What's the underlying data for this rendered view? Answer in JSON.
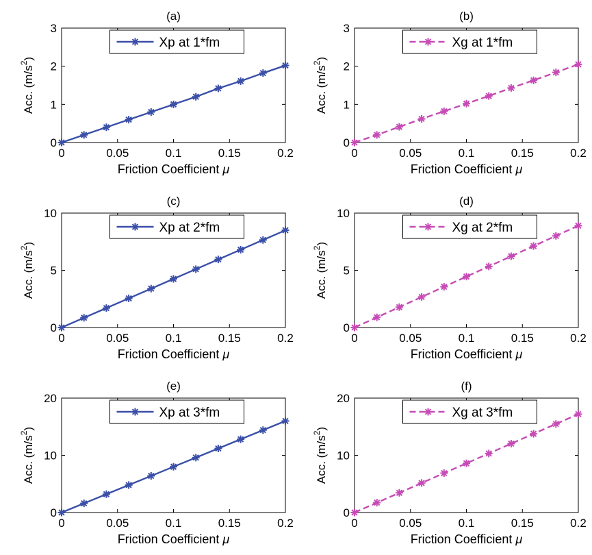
{
  "chart_data": [
    {
      "type": "line",
      "title": "(a)",
      "xlabel": "Friction Coefficient μ",
      "ylabel": "Acc. (m/s2)",
      "ylabel_parts": {
        "base": "Acc. (m/s",
        "sup": "2",
        "end": ")"
      },
      "xlim": [
        0,
        0.2
      ],
      "ylim": [
        0,
        3
      ],
      "xticks": [
        0,
        0.05,
        0.1,
        0.15,
        0.2
      ],
      "xtick_labels": [
        "0",
        "0.05",
        "0.1",
        "0.15",
        "0.2"
      ],
      "yticks": [
        0,
        1,
        2,
        3
      ],
      "ytick_labels": [
        "0",
        "1",
        "2",
        "3"
      ],
      "legend_position": "top-center",
      "series": [
        {
          "name": "Xp at 1*fm",
          "color": "#3a4fa8",
          "line_style": "solid",
          "marker": "asterisk",
          "x": [
            0,
            0.02,
            0.04,
            0.06,
            0.08,
            0.1,
            0.12,
            0.14,
            0.16,
            0.18,
            0.2
          ],
          "y": [
            0,
            0.2,
            0.4,
            0.6,
            0.8,
            1.0,
            1.2,
            1.42,
            1.61,
            1.82,
            2.02
          ]
        }
      ]
    },
    {
      "type": "line",
      "title": "(b)",
      "xlabel": "Friction Coefficient μ",
      "ylabel": "Acc. (m/s2)",
      "ylabel_parts": {
        "base": "Acc. (m/s",
        "sup": "2",
        "end": ")"
      },
      "xlim": [
        0,
        0.2
      ],
      "ylim": [
        0,
        3
      ],
      "xticks": [
        0,
        0.05,
        0.1,
        0.15,
        0.2
      ],
      "xtick_labels": [
        "0",
        "0.05",
        "0.1",
        "0.15",
        "0.2"
      ],
      "yticks": [
        0,
        1,
        2,
        3
      ],
      "ytick_labels": [
        "0",
        "1",
        "2",
        "3"
      ],
      "legend_position": "top-center",
      "series": [
        {
          "name": "Xg at 1*fm",
          "color": "#c64bb5",
          "line_style": "dashed",
          "marker": "asterisk",
          "x": [
            0,
            0.02,
            0.04,
            0.06,
            0.08,
            0.1,
            0.12,
            0.14,
            0.16,
            0.18,
            0.2
          ],
          "y": [
            0,
            0.2,
            0.41,
            0.62,
            0.82,
            1.02,
            1.22,
            1.43,
            1.63,
            1.84,
            2.05
          ]
        }
      ]
    },
    {
      "type": "line",
      "title": "(c)",
      "xlabel": "Friction Coefficient μ",
      "ylabel": "Acc. (m/s2)",
      "ylabel_parts": {
        "base": "Acc. (m/s",
        "sup": "2",
        "end": ")"
      },
      "xlim": [
        0,
        0.2
      ],
      "ylim": [
        0,
        10
      ],
      "xticks": [
        0,
        0.05,
        0.1,
        0.15,
        0.2
      ],
      "xtick_labels": [
        "0",
        "0.05",
        "0.1",
        "0.15",
        "0.2"
      ],
      "yticks": [
        0,
        5,
        10
      ],
      "ytick_labels": [
        "0",
        "5",
        "10"
      ],
      "legend_position": "top-center",
      "series": [
        {
          "name": "Xp at 2*fm",
          "color": "#3a4fa8",
          "line_style": "solid",
          "marker": "asterisk",
          "x": [
            0,
            0.02,
            0.04,
            0.06,
            0.08,
            0.1,
            0.12,
            0.14,
            0.16,
            0.18,
            0.2
          ],
          "y": [
            0,
            0.85,
            1.7,
            2.55,
            3.4,
            4.25,
            5.1,
            5.95,
            6.8,
            7.65,
            8.5
          ]
        }
      ]
    },
    {
      "type": "line",
      "title": "(d)",
      "xlabel": "Friction Coefficient μ",
      "ylabel": "Acc. (m/s2)",
      "ylabel_parts": {
        "base": "Acc. (m/s",
        "sup": "2",
        "end": ")"
      },
      "xlim": [
        0,
        0.2
      ],
      "ylim": [
        0,
        10
      ],
      "xticks": [
        0,
        0.05,
        0.1,
        0.15,
        0.2
      ],
      "xtick_labels": [
        "0",
        "0.05",
        "0.1",
        "0.15",
        "0.2"
      ],
      "yticks": [
        0,
        5,
        10
      ],
      "ytick_labels": [
        "0",
        "5",
        "10"
      ],
      "legend_position": "top-center",
      "series": [
        {
          "name": "Xg at 2*fm",
          "color": "#c64bb5",
          "line_style": "dashed",
          "marker": "asterisk",
          "x": [
            0,
            0.02,
            0.04,
            0.06,
            0.08,
            0.1,
            0.12,
            0.14,
            0.16,
            0.18,
            0.2
          ],
          "y": [
            0,
            0.89,
            1.78,
            2.67,
            3.56,
            4.45,
            5.34,
            6.23,
            7.12,
            8.01,
            8.9
          ]
        }
      ]
    },
    {
      "type": "line",
      "title": "(e)",
      "xlabel": "Friction Coefficient μ",
      "ylabel": "Acc. (m/s2)",
      "ylabel_parts": {
        "base": "Acc. (m/s",
        "sup": "2",
        "end": ")"
      },
      "xlim": [
        0,
        0.2
      ],
      "ylim": [
        0,
        20
      ],
      "xticks": [
        0,
        0.05,
        0.1,
        0.15,
        0.2
      ],
      "xtick_labels": [
        "0",
        "0.05",
        "0.1",
        "0.15",
        "0.2"
      ],
      "yticks": [
        0,
        10,
        20
      ],
      "ytick_labels": [
        "0",
        "10",
        "20"
      ],
      "legend_position": "top-center",
      "series": [
        {
          "name": "Xp at 3*fm",
          "color": "#3a4fa8",
          "line_style": "solid",
          "marker": "asterisk",
          "x": [
            0,
            0.02,
            0.04,
            0.06,
            0.08,
            0.1,
            0.12,
            0.14,
            0.16,
            0.18,
            0.2
          ],
          "y": [
            0,
            1.6,
            3.2,
            4.8,
            6.4,
            8.0,
            9.6,
            11.2,
            12.8,
            14.4,
            16.0
          ]
        }
      ]
    },
    {
      "type": "line",
      "title": "(f)",
      "xlabel": "Friction Coefficient μ",
      "ylabel": "Acc. (m/s2)",
      "ylabel_parts": {
        "base": "Acc. (m/s",
        "sup": "2",
        "end": ")"
      },
      "xlim": [
        0,
        0.2
      ],
      "ylim": [
        0,
        20
      ],
      "xticks": [
        0,
        0.05,
        0.1,
        0.15,
        0.2
      ],
      "xtick_labels": [
        "0",
        "0.05",
        "0.1",
        "0.15",
        "0.2"
      ],
      "yticks": [
        0,
        10,
        20
      ],
      "ytick_labels": [
        "0",
        "10",
        "20"
      ],
      "legend_position": "top-center",
      "series": [
        {
          "name": "Xg at 3*fm",
          "color": "#c64bb5",
          "line_style": "dashed",
          "marker": "asterisk",
          "x": [
            0,
            0.02,
            0.04,
            0.06,
            0.08,
            0.1,
            0.12,
            0.14,
            0.16,
            0.18,
            0.2
          ],
          "y": [
            0,
            1.72,
            3.44,
            5.16,
            6.88,
            8.6,
            10.32,
            12.04,
            13.76,
            15.48,
            17.2
          ]
        }
      ]
    }
  ]
}
